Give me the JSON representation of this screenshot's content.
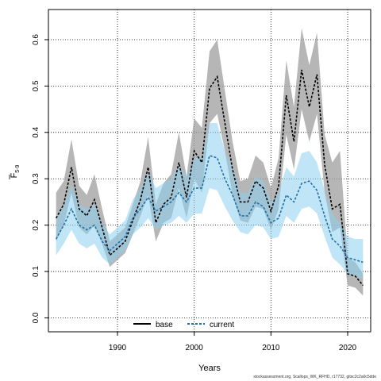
{
  "chart_data": {
    "type": "line",
    "xlabel": "Years",
    "ylabel_main": "F",
    "ylabel_sub": "5-9",
    "xlim": [
      1981,
      2023
    ],
    "ylim": [
      -0.03,
      0.665
    ],
    "x_ticks": [
      1990,
      2000,
      2010,
      2020
    ],
    "y_ticks": [
      0.0,
      0.1,
      0.2,
      0.3,
      0.4,
      0.5,
      0.6
    ],
    "y_tick_labels": [
      "0.0",
      "0.1",
      "0.2",
      "0.3",
      "0.4",
      "0.5",
      "0.6"
    ],
    "grid": true,
    "legend_position": "bottom-center",
    "x": [
      1982,
      1983,
      1984,
      1985,
      1986,
      1987,
      1988,
      1989,
      1990,
      1991,
      1992,
      1993,
      1994,
      1995,
      1996,
      1997,
      1998,
      1999,
      2000,
      2001,
      2002,
      2003,
      2004,
      2005,
      2006,
      2007,
      2008,
      2009,
      2010,
      2011,
      2012,
      2013,
      2014,
      2015,
      2016,
      2017,
      2018,
      2019,
      2020,
      2021,
      2022
    ],
    "series": [
      {
        "name": "base",
        "color": "#000000",
        "band_color": "#9e9e9e",
        "values": [
          0.215,
          0.245,
          0.325,
          0.235,
          0.22,
          0.255,
          0.195,
          0.135,
          0.15,
          0.165,
          0.21,
          0.255,
          0.325,
          0.205,
          0.245,
          0.26,
          0.335,
          0.26,
          0.36,
          0.335,
          0.495,
          0.52,
          0.42,
          0.32,
          0.25,
          0.25,
          0.295,
          0.28,
          0.23,
          0.285,
          0.48,
          0.38,
          0.535,
          0.455,
          0.525,
          0.33,
          0.235,
          0.245,
          0.095,
          0.09,
          0.07
        ],
        "lower": [
          0.165,
          0.2,
          0.27,
          0.195,
          0.18,
          0.2,
          0.16,
          0.11,
          0.125,
          0.14,
          0.18,
          0.22,
          0.265,
          0.165,
          0.205,
          0.215,
          0.28,
          0.215,
          0.3,
          0.27,
          0.42,
          0.44,
          0.36,
          0.265,
          0.21,
          0.205,
          0.24,
          0.235,
          0.19,
          0.235,
          0.395,
          0.32,
          0.45,
          0.38,
          0.44,
          0.27,
          0.185,
          0.195,
          0.07,
          0.065,
          0.048
        ],
        "upper": [
          0.27,
          0.295,
          0.385,
          0.285,
          0.265,
          0.31,
          0.235,
          0.165,
          0.18,
          0.195,
          0.245,
          0.295,
          0.39,
          0.245,
          0.29,
          0.31,
          0.4,
          0.305,
          0.43,
          0.41,
          0.575,
          0.6,
          0.49,
          0.38,
          0.295,
          0.3,
          0.35,
          0.335,
          0.28,
          0.345,
          0.555,
          0.455,
          0.625,
          0.545,
          0.615,
          0.395,
          0.335,
          0.36,
          0.13,
          0.12,
          0.095
        ]
      },
      {
        "name": "current",
        "color": "#1f6fa8",
        "band_color": "#8ccfee",
        "values": [
          0.17,
          0.2,
          0.235,
          0.2,
          0.19,
          0.2,
          0.165,
          0.145,
          0.16,
          0.175,
          0.215,
          0.235,
          0.26,
          0.23,
          0.24,
          0.25,
          0.27,
          0.25,
          0.28,
          0.28,
          0.35,
          0.345,
          0.3,
          0.265,
          0.22,
          0.22,
          0.25,
          0.24,
          0.205,
          0.215,
          0.265,
          0.25,
          0.29,
          0.295,
          0.275,
          0.22,
          0.17,
          0.155,
          0.13,
          0.125,
          0.12
        ],
        "lower": [
          0.135,
          0.16,
          0.19,
          0.16,
          0.15,
          0.16,
          0.13,
          0.115,
          0.13,
          0.145,
          0.18,
          0.195,
          0.215,
          0.19,
          0.2,
          0.205,
          0.22,
          0.205,
          0.225,
          0.225,
          0.28,
          0.275,
          0.24,
          0.21,
          0.185,
          0.18,
          0.2,
          0.195,
          0.17,
          0.175,
          0.22,
          0.205,
          0.235,
          0.24,
          0.225,
          0.175,
          0.13,
          0.115,
          0.095,
          0.09,
          0.085
        ],
        "upper": [
          0.21,
          0.245,
          0.285,
          0.245,
          0.235,
          0.245,
          0.205,
          0.18,
          0.195,
          0.21,
          0.255,
          0.28,
          0.315,
          0.28,
          0.29,
          0.3,
          0.33,
          0.305,
          0.345,
          0.345,
          0.42,
          0.42,
          0.36,
          0.325,
          0.27,
          0.27,
          0.305,
          0.295,
          0.25,
          0.27,
          0.325,
          0.305,
          0.355,
          0.36,
          0.335,
          0.275,
          0.225,
          0.205,
          0.175,
          0.17,
          0.17
        ]
      }
    ]
  },
  "footnote": "stockassessment.org, Scallops_WK_RFHD, r17732, gitsc2c2a0c5dde"
}
